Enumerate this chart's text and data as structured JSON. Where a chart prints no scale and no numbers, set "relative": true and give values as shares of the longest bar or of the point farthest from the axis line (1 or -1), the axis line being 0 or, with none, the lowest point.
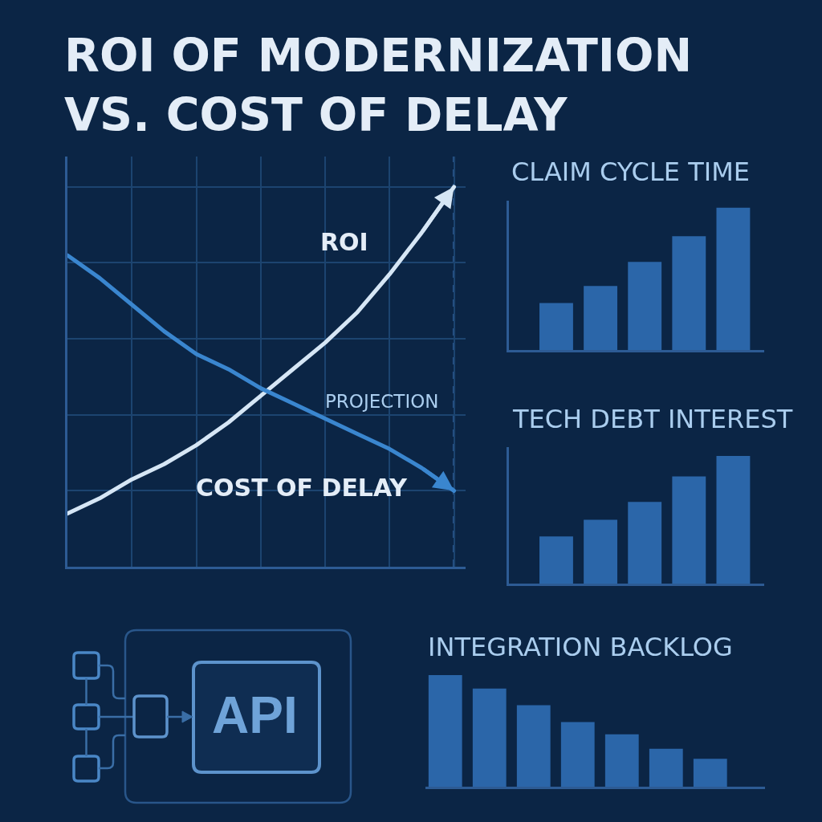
{
  "chart_data": [
    {
      "type": "line",
      "title": "ROI OF MODERNIZATION VS. COST OF DELAY",
      "categories": [
        null,
        null,
        null,
        null,
        null,
        null,
        null,
        null,
        null,
        null,
        null,
        null,
        null
      ],
      "series": [
        {
          "name": "ROI",
          "color": "#d6e6f5",
          "values": [
            0.14,
            0.18,
            0.23,
            0.27,
            0.32,
            0.38,
            0.45,
            0.52,
            0.59,
            0.67,
            0.77,
            0.88,
            1.0
          ]
        },
        {
          "name": "COST OF DELAY",
          "color": "#3a86cf",
          "values": [
            0.82,
            0.76,
            0.69,
            0.62,
            0.56,
            0.52,
            0.47,
            0.43,
            0.39,
            0.35,
            0.31,
            0.26,
            0.2
          ]
        }
      ],
      "relative": true,
      "grid": true,
      "annotations": [
        "PROJECTION"
      ]
    },
    {
      "type": "bar",
      "title": "CLAIM CYCLE TIME",
      "categories": [
        null,
        null,
        null,
        null,
        null
      ],
      "values": [
        0.33,
        0.45,
        0.62,
        0.8,
        1.0
      ],
      "color": "#2b66a9",
      "relative": true
    },
    {
      "type": "bar",
      "title": "TECH DEBT INTEREST",
      "categories": [
        null,
        null,
        null,
        null,
        null
      ],
      "values": [
        0.37,
        0.5,
        0.64,
        0.84,
        1.0
      ],
      "color": "#2b66a9",
      "relative": true
    },
    {
      "type": "other",
      "annotations": [
        "API"
      ]
    },
    {
      "type": "bar",
      "title": "INTEGRATION BACKLOG",
      "categories": [
        null,
        null,
        null,
        null,
        null,
        null,
        null
      ],
      "values": [
        1.0,
        0.88,
        0.73,
        0.58,
        0.47,
        0.34,
        0.25
      ],
      "color": "#2b66a9",
      "relative": true
    }
  ]
}
